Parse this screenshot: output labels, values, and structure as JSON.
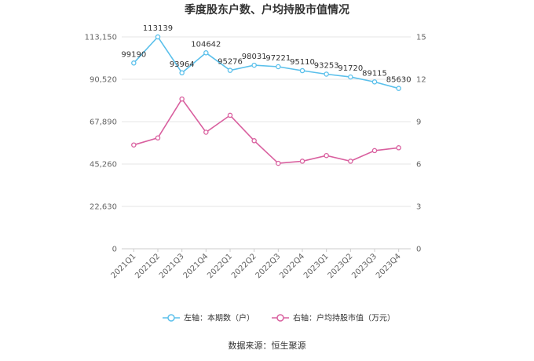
{
  "chart_data": {
    "type": "line",
    "title": "季度股东户数、户均持股市值情况",
    "categories": [
      "2021Q1",
      "2021Q2",
      "2021Q3",
      "2021Q4",
      "2022Q1",
      "2022Q2",
      "2022Q3",
      "2022Q4",
      "2023Q1",
      "2023Q2",
      "2023Q3",
      "2023Q4"
    ],
    "left_axis": {
      "min": 0,
      "max": 113150,
      "ticks": [
        "0",
        "22,630",
        "45,260",
        "67,890",
        "90,520",
        "113,150"
      ],
      "tick_values": [
        0,
        22630,
        45260,
        67890,
        90520,
        113150
      ]
    },
    "right_axis": {
      "min": 0,
      "max": 15,
      "ticks": [
        "0",
        "3",
        "6",
        "9",
        "12",
        "15"
      ],
      "tick_values": [
        0,
        3,
        6,
        9,
        12,
        15
      ]
    },
    "series": [
      {
        "name": "左轴：本期数（户）",
        "axis": "left",
        "color": "#5bc0eb",
        "values": [
          99190,
          113139,
          93964,
          104642,
          95276,
          98031,
          97221,
          95110,
          93253,
          91720,
          89115,
          85630
        ],
        "labels": [
          "99190",
          "113139",
          "93964",
          "104642",
          "95276",
          "98031",
          "97221",
          "95110",
          "93253",
          "91720",
          "89115",
          "85630"
        ]
      },
      {
        "name": "右轴：户均持股市值（万元）",
        "axis": "right",
        "color": "#d9609f",
        "values": [
          7.35,
          7.85,
          10.6,
          8.25,
          9.45,
          7.65,
          6.05,
          6.2,
          6.6,
          6.2,
          6.95,
          7.15
        ]
      }
    ],
    "grid": true,
    "legend_position": "bottom"
  },
  "footer": {
    "source": "数据来源：恒生聚源"
  }
}
